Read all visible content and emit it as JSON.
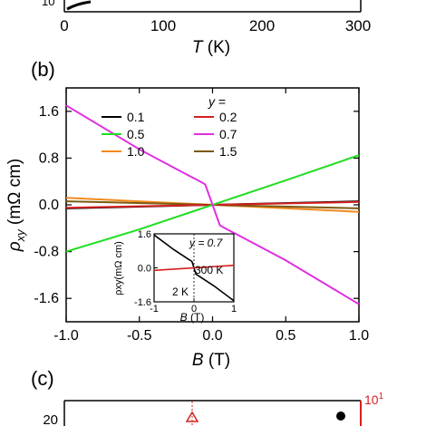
{
  "top_panel": {
    "tick_labels": [
      "0",
      "100",
      "200",
      "300"
    ],
    "partial_label": "10",
    "xlabel_var": "T",
    "xlabel_unit": " (K)"
  },
  "panel_b": {
    "label": "(b)",
    "legend_title_var": "y",
    "legend_title_suffix": " =",
    "xlabel_var": "B",
    "xlabel_unit": " (T)",
    "ylabel_var": "ρ",
    "ylabel_sub": "xy",
    "ylabel_unit": " (mΩ cm)"
  },
  "panel_c": {
    "label": "(c)",
    "left_tick": "20",
    "right_tick_base": "10",
    "right_tick_exp": "1"
  },
  "inset": {
    "annotation_y": "y = 0.7",
    "label_300k": "300 K",
    "label_2k": "2 K",
    "xlabel_var": "B",
    "xlabel_unit": " (T)",
    "ylabel": "ρxy(mΩ cm)"
  },
  "colors": {
    "black": "#000000",
    "red": "#d62020",
    "green": "#22dd22",
    "magenta": "#e030e0",
    "orange": "#f08a1e",
    "olive": "#7a5a10"
  },
  "chart_data": {
    "type": "line",
    "xlabel": "B (T)",
    "ylabel": "ρxy (mΩ cm)",
    "xlim": [
      -1.0,
      1.0
    ],
    "ylim": [
      -2.0,
      2.0
    ],
    "x_ticks": [
      "-1.0",
      "-0.5",
      "0.0",
      "0.5",
      "1.0"
    ],
    "y_ticks": [
      "-1.6",
      "-0.8",
      "0.0",
      "0.8",
      "1.6"
    ],
    "legend_title": "y =",
    "legend_placement": "top-center",
    "series": [
      {
        "name": "0.1",
        "color": "#000000",
        "x": [
          -1.0,
          1.0
        ],
        "y": [
          -0.06,
          0.06
        ]
      },
      {
        "name": "0.2",
        "color": "#d62020",
        "x": [
          -1.0,
          1.0
        ],
        "y": [
          -0.05,
          0.05
        ]
      },
      {
        "name": "0.5",
        "color": "#22dd22",
        "x": [
          -1.0,
          -0.5,
          0.0,
          0.5,
          1.0
        ],
        "y": [
          -0.8,
          -0.42,
          0.0,
          0.42,
          0.85
        ]
      },
      {
        "name": "0.7",
        "color": "#e030e0",
        "x": [
          -1.0,
          -0.5,
          -0.2,
          -0.1,
          -0.05,
          0.0,
          0.05,
          0.1,
          0.2,
          0.5,
          1.0
        ],
        "y": [
          1.7,
          0.95,
          0.55,
          0.42,
          0.35,
          0.0,
          -0.35,
          -0.42,
          -0.55,
          -0.95,
          -1.7
        ]
      },
      {
        "name": "1.0",
        "color": "#f08a1e",
        "x": [
          -1.0,
          1.0
        ],
        "y": [
          0.12,
          -0.12
        ]
      },
      {
        "name": "1.5",
        "color": "#7a5a10",
        "x": [
          -1.0,
          1.0
        ],
        "y": [
          0.06,
          -0.06
        ]
      }
    ],
    "inset": {
      "xlim": [
        -1,
        1
      ],
      "ylim": [
        -1.6,
        1.6
      ],
      "x_ticks": [
        "-1",
        "0",
        "1"
      ],
      "y_ticks": [
        "1.6",
        "0.0",
        "-1.6"
      ],
      "series": [
        {
          "name": "2 K",
          "color": "#000000",
          "x": [
            -1.0,
            -0.5,
            -0.15,
            -0.05,
            0.0,
            0.05,
            0.15,
            0.5,
            1.0
          ],
          "y": [
            1.55,
            0.85,
            0.42,
            0.3,
            0.0,
            -0.3,
            -0.42,
            -0.85,
            -1.55
          ]
        },
        {
          "name": "300 K",
          "color": "#d62020",
          "x": [
            -1.0,
            1.0
          ],
          "y": [
            -0.12,
            0.12
          ]
        }
      ]
    }
  }
}
